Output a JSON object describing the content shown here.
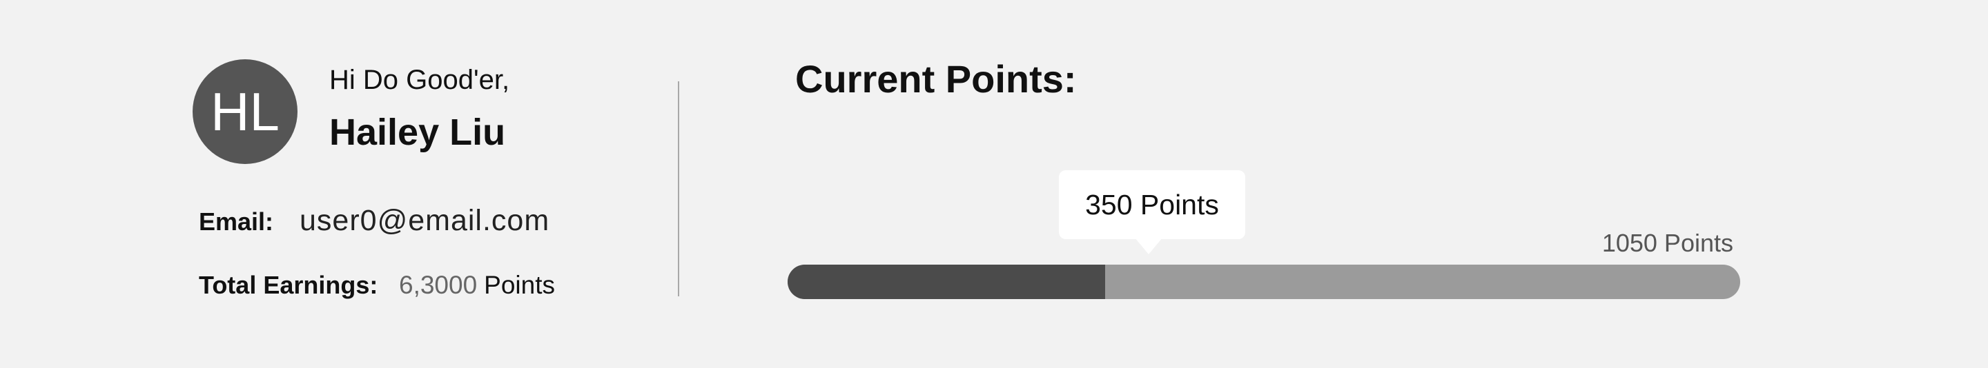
{
  "profile": {
    "initials": "HL",
    "greeting": "Hi Do Good'er,",
    "name": "Hailey Liu",
    "email_label": "Email:",
    "email": "user0@email.com",
    "earnings_label": "Total Earnings:",
    "earnings_value": "6,3000",
    "earnings_unit": "Points"
  },
  "points": {
    "title": "Current Points:",
    "current_label": "350 Points",
    "max_label": "1050 Points",
    "current": 350,
    "max": 1050
  },
  "colors": {
    "background": "#f2f2f2",
    "avatar": "#555555",
    "progress_fill": "#4b4b4b",
    "progress_track": "#9b9b9b",
    "tooltip": "#ffffff"
  }
}
